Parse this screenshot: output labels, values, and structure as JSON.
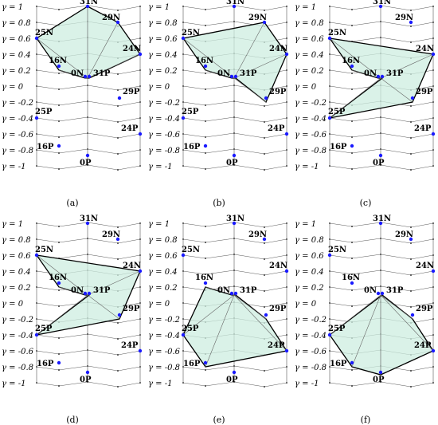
{
  "colors": {
    "fill": "#cdeee0",
    "point": "#1a1aff",
    "grid": "#555555",
    "polygon_edge": "#000000"
  },
  "gamma_labels": [
    "γ = 1",
    "γ = 0.8",
    "γ = 0.6",
    "γ = 0.4",
    "γ = 0.2",
    "γ = 0",
    "γ = -0.2",
    "γ = -0.4",
    "γ = -0.6",
    "γ = -0.8",
    "γ = -1"
  ],
  "point_labels": {
    "31N": "31N",
    "29N": "29N",
    "24N": "24N",
    "25N": "25N",
    "16N": "16N",
    "0N": "0N",
    "31P": "31P",
    "29P": "29P",
    "24P": "24P",
    "25P": "25P",
    "16P": "16P",
    "0P": "0P"
  },
  "panels": [
    {
      "caption": "(a)",
      "polygon": [
        [
          "31N",
          1
        ],
        [
          "29N",
          0.8
        ],
        [
          "24N",
          0.4
        ],
        [
          "31P",
          0.1
        ],
        [
          "0N",
          0.1
        ],
        [
          "16N",
          0.2
        ],
        [
          "25N",
          0.6
        ]
      ],
      "spokes": [
        "31N",
        "29N",
        "24N",
        "0N",
        "16N",
        "25N"
      ]
    },
    {
      "caption": "(b)",
      "polygon": [
        [
          "25N",
          0.6
        ],
        [
          "29N",
          0.8
        ],
        [
          "24N",
          0.4
        ],
        [
          "29P",
          -0.2
        ],
        [
          "31P",
          0.1
        ],
        [
          "0N",
          0.1
        ],
        [
          "16N",
          0.2
        ]
      ],
      "spokes": [
        "25N",
        "29N",
        "24N",
        "29P",
        "16N"
      ]
    },
    {
      "caption": "(c)",
      "polygon": [
        [
          "25N",
          0.6
        ],
        [
          "24N",
          0.4
        ],
        [
          "29P",
          -0.2
        ],
        [
          "25P",
          -0.4
        ],
        [
          "31P",
          0.1
        ],
        [
          "0N",
          0.1
        ],
        [
          "16N",
          0.2
        ]
      ],
      "spokes": [
        "25N",
        "24N",
        "29P",
        "25P",
        "16N"
      ]
    },
    {
      "caption": "(d)",
      "polygon": [
        [
          "25N",
          0.6
        ],
        [
          "24N",
          0.4
        ],
        [
          "29P",
          -0.2
        ],
        [
          "25P",
          -0.4
        ],
        [
          "31P",
          0.1
        ],
        [
          "0N",
          0.1
        ],
        [
          "16N",
          0.2
        ]
      ],
      "spokes": [
        "25N",
        "24N",
        "29P",
        "25P",
        "16N"
      ]
    },
    {
      "caption": "(e)",
      "polygon": [
        [
          "16N",
          0.2
        ],
        [
          "0N",
          0.1
        ],
        [
          "31P",
          0.1
        ],
        [
          "29P",
          -0.2
        ],
        [
          "24P",
          -0.6
        ],
        [
          "16P",
          -0.8
        ],
        [
          "25P",
          -0.4
        ]
      ],
      "spokes": [
        "16N",
        "29P",
        "24P",
        "16P",
        "25P"
      ]
    },
    {
      "caption": "(f)",
      "polygon": [
        [
          "31P",
          0.1
        ],
        [
          "29P",
          -0.2
        ],
        [
          "24P",
          -0.6
        ],
        [
          "0P",
          -0.9
        ],
        [
          "16P",
          -0.8
        ],
        [
          "25P",
          -0.4
        ]
      ],
      "spokes": [
        "29P",
        "24P",
        "0P",
        "16P",
        "25P"
      ]
    }
  ]
}
